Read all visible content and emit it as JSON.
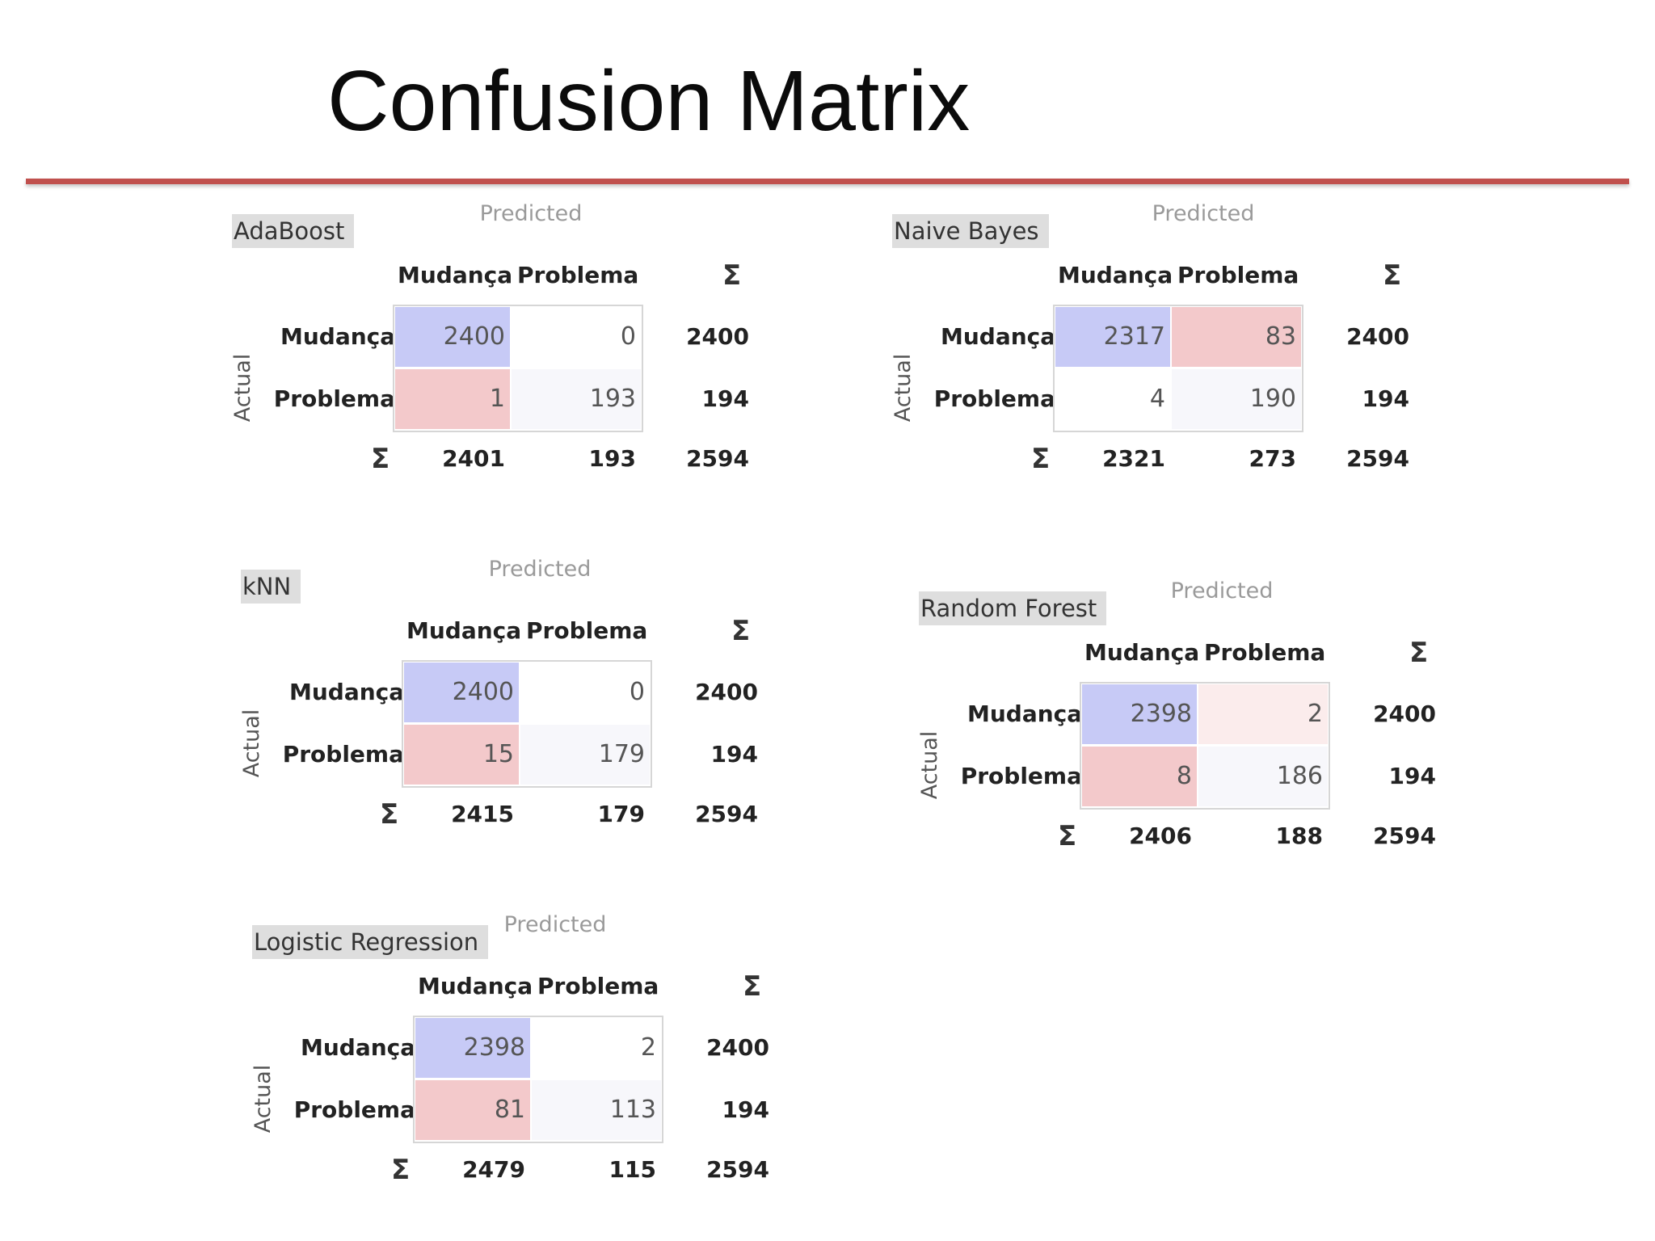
{
  "slide_title": "Confusion Matrix",
  "colors": {
    "rule": "#c0504d",
    "correct_cell": "#c7caf6",
    "error_cell": "#f3c9cb",
    "light_error": "#fbecec"
  },
  "labels": {
    "predicted": "Predicted",
    "actual": "Actual",
    "class_a": "Mudança",
    "class_b": "Problema",
    "sigma": "Σ"
  },
  "matrices": [
    {
      "model": "AdaBoost",
      "cells": [
        [
          "2400",
          "0"
        ],
        [
          "1",
          "193"
        ]
      ],
      "row_totals": [
        "2400",
        "194"
      ],
      "col_totals": [
        "2401",
        "193"
      ],
      "grand_total": "2594",
      "shading": [
        [
          "correct",
          "none"
        ],
        [
          "error",
          "faint"
        ]
      ]
    },
    {
      "model": "Naive Bayes",
      "cells": [
        [
          "2317",
          "83"
        ],
        [
          "4",
          "190"
        ]
      ],
      "row_totals": [
        "2400",
        "194"
      ],
      "col_totals": [
        "2321",
        "273"
      ],
      "grand_total": "2594",
      "shading": [
        [
          "correct",
          "error"
        ],
        [
          "none",
          "faint"
        ]
      ]
    },
    {
      "model": "kNN",
      "cells": [
        [
          "2400",
          "0"
        ],
        [
          "15",
          "179"
        ]
      ],
      "row_totals": [
        "2400",
        "194"
      ],
      "col_totals": [
        "2415",
        "179"
      ],
      "grand_total": "2594",
      "shading": [
        [
          "correct",
          "none"
        ],
        [
          "error",
          "faint"
        ]
      ]
    },
    {
      "model": "Random Forest",
      "cells": [
        [
          "2398",
          "2"
        ],
        [
          "8",
          "186"
        ]
      ],
      "row_totals": [
        "2400",
        "194"
      ],
      "col_totals": [
        "2406",
        "188"
      ],
      "grand_total": "2594",
      "shading": [
        [
          "correct",
          "light_error"
        ],
        [
          "error",
          "faint"
        ]
      ]
    },
    {
      "model": "Logistic Regression",
      "cells": [
        [
          "2398",
          "2"
        ],
        [
          "81",
          "113"
        ]
      ],
      "row_totals": [
        "2400",
        "194"
      ],
      "col_totals": [
        "2479",
        "115"
      ],
      "grand_total": "2594",
      "shading": [
        [
          "correct",
          "none"
        ],
        [
          "error",
          "faint"
        ]
      ]
    }
  ]
}
